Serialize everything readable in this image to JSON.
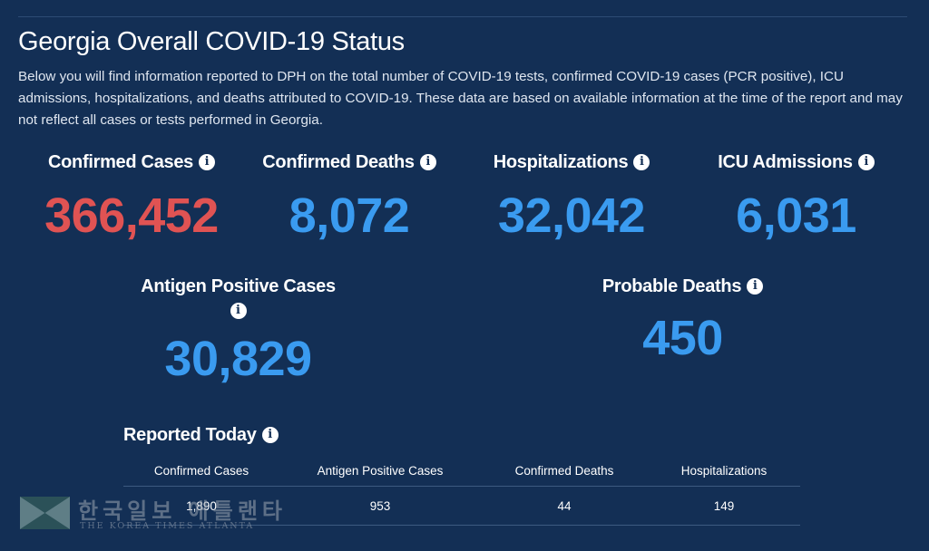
{
  "page": {
    "title": "Georgia Overall COVID-19 Status",
    "description": "Below you will find information reported to DPH on the total number of COVID-19 tests, confirmed COVID-19 cases (PCR positive), ICU admissions, hospitalizations, and deaths attributed to COVID-19. These data are based on available information at the time of the report and may not reflect all cases or tests performed in Georgia."
  },
  "info_glyph": "i",
  "stats": {
    "confirmed_cases": {
      "label": "Confirmed Cases",
      "value": "366,452",
      "color": "#e05353"
    },
    "confirmed_deaths": {
      "label": "Confirmed Deaths",
      "value": "8,072",
      "color": "#3a9bf0"
    },
    "hospitalizations": {
      "label": "Hospitalizations",
      "value": "32,042",
      "color": "#3a9bf0"
    },
    "icu_admissions": {
      "label": "ICU Admissions",
      "value": "6,031",
      "color": "#3a9bf0"
    },
    "antigen_positive": {
      "label": "Antigen Positive Cases",
      "value": "30,829",
      "color": "#3a9bf0"
    },
    "probable_deaths": {
      "label": "Probable Deaths",
      "value": "450",
      "color": "#3a9bf0"
    }
  },
  "reported_today": {
    "heading": "Reported Today",
    "columns": [
      "Confirmed Cases",
      "Antigen Positive Cases",
      "Confirmed Deaths",
      "Hospitalizations"
    ],
    "values": [
      "1,890",
      "953",
      "44",
      "149"
    ]
  },
  "watermark": {
    "korean": "한국일보 애틀랜타",
    "english": "THE KOREA TIMES ATLANTA"
  },
  "colors": {
    "background": "#132f55",
    "accent_blue": "#3a9bf0",
    "accent_red": "#e05353"
  }
}
